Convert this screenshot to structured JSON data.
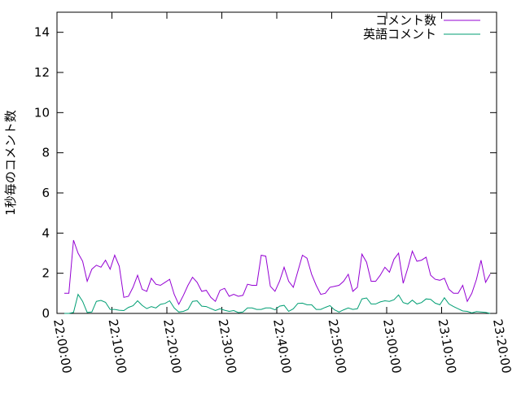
{
  "chart_data": {
    "type": "line",
    "title": "",
    "xlabel": "",
    "ylabel": "1秒毎のコメント数",
    "xlim": [
      "22:00:00",
      "23:20:00"
    ],
    "ylim": [
      0,
      15
    ],
    "xticks": [
      "22:00:00",
      "22:10:00",
      "22:20:00",
      "22:30:00",
      "22:40:00",
      "22:50:00",
      "23:00:00",
      "23:10:00",
      "23:20:00"
    ],
    "yticks": [
      "0",
      "2",
      "4",
      "6",
      "8",
      "10",
      "12",
      "14"
    ],
    "grid": false,
    "legend_position": "top-right",
    "x": [
      "22:01:20",
      "22:02:10",
      "22:03:00",
      "22:03:50",
      "22:04:40",
      "22:05:30",
      "22:06:20",
      "22:07:10",
      "22:08:00",
      "22:08:50",
      "22:09:40",
      "22:10:30",
      "22:11:20",
      "22:12:10",
      "22:13:00",
      "22:13:50",
      "22:14:40",
      "22:15:30",
      "22:16:20",
      "22:17:10",
      "22:18:00",
      "22:18:50",
      "22:19:40",
      "22:20:30",
      "22:21:20",
      "22:22:10",
      "22:23:00",
      "22:23:50",
      "22:24:40",
      "22:25:30",
      "22:26:20",
      "22:27:10",
      "22:28:00",
      "22:28:50",
      "22:29:40",
      "22:30:30",
      "22:31:20",
      "22:32:10",
      "22:33:00",
      "22:33:50",
      "22:34:40",
      "22:35:30",
      "22:36:20",
      "22:37:10",
      "22:38:00",
      "22:38:50",
      "22:39:40",
      "22:40:30",
      "22:41:20",
      "22:42:10",
      "22:43:00",
      "22:43:50",
      "22:44:40",
      "22:45:30",
      "22:46:20",
      "22:47:10",
      "22:48:00",
      "22:48:50",
      "22:49:40",
      "22:50:30",
      "22:51:20",
      "22:52:10",
      "22:53:00",
      "22:53:50",
      "22:54:40",
      "22:55:30",
      "22:56:20",
      "22:57:10",
      "22:58:00",
      "22:58:50",
      "22:59:40",
      "23:00:30",
      "23:01:20",
      "23:02:10",
      "23:03:00",
      "23:03:50",
      "23:04:40",
      "23:05:30",
      "23:06:20",
      "23:07:10",
      "23:08:00",
      "23:08:50",
      "23:09:40",
      "23:10:30",
      "23:11:20",
      "23:12:10",
      "23:13:00",
      "23:13:50",
      "23:14:40",
      "23:15:30",
      "23:16:20",
      "23:17:10",
      "23:18:00",
      "23:18:50"
    ],
    "series": [
      {
        "name": "コメント数",
        "color": "#9400d3",
        "values": [
          1.0,
          1.0,
          3.65,
          3.0,
          2.6,
          1.6,
          2.2,
          2.4,
          2.3,
          2.65,
          2.2,
          2.9,
          2.35,
          0.8,
          0.85,
          1.3,
          1.9,
          1.2,
          1.1,
          1.75,
          1.45,
          1.4,
          1.55,
          1.7,
          0.95,
          0.45,
          0.9,
          1.4,
          1.8,
          1.55,
          1.1,
          1.15,
          0.8,
          0.6,
          1.15,
          1.25,
          0.85,
          0.95,
          0.85,
          0.9,
          1.45,
          1.4,
          1.4,
          2.9,
          2.85,
          1.35,
          1.1,
          1.6,
          2.3,
          1.6,
          1.3,
          2.1,
          2.9,
          2.75,
          1.95,
          1.4,
          0.95,
          1.0,
          1.3,
          1.35,
          1.4,
          1.6,
          1.95,
          1.1,
          1.3,
          2.95,
          2.55,
          1.6,
          1.6,
          1.9,
          2.3,
          2.05,
          2.7,
          3.0,
          1.5,
          2.25,
          3.1,
          2.6,
          2.65,
          2.8,
          1.9,
          1.7,
          1.65,
          1.75,
          1.2,
          1.0,
          1.0,
          1.4,
          0.6,
          1.0,
          1.7,
          2.65,
          1.55,
          1.95
        ]
      },
      {
        "name": "英語コメント",
        "color": "#009e73",
        "values": [
          0,
          0,
          0.05,
          0.95,
          0.6,
          0.05,
          0.07,
          0.6,
          0.65,
          0.55,
          0.2,
          0.2,
          0.16,
          0.14,
          0.3,
          0.38,
          0.63,
          0.4,
          0.24,
          0.34,
          0.27,
          0.45,
          0.5,
          0.63,
          0.27,
          0.07,
          0.1,
          0.2,
          0.6,
          0.63,
          0.36,
          0.34,
          0.24,
          0.14,
          0.23,
          0.16,
          0.1,
          0.14,
          0.04,
          0.07,
          0.27,
          0.27,
          0.2,
          0.2,
          0.27,
          0.27,
          0.18,
          0.36,
          0.4,
          0.1,
          0.23,
          0.5,
          0.51,
          0.43,
          0.43,
          0.2,
          0.2,
          0.3,
          0.39,
          0.18,
          0.07,
          0.18,
          0.27,
          0.2,
          0.23,
          0.72,
          0.77,
          0.47,
          0.47,
          0.57,
          0.63,
          0.6,
          0.68,
          0.92,
          0.54,
          0.47,
          0.66,
          0.47,
          0.54,
          0.72,
          0.7,
          0.51,
          0.43,
          0.78,
          0.47,
          0.34,
          0.23,
          0.12,
          0.1,
          0.03,
          0.09,
          0.07,
          0.05,
          0
        ]
      }
    ]
  }
}
